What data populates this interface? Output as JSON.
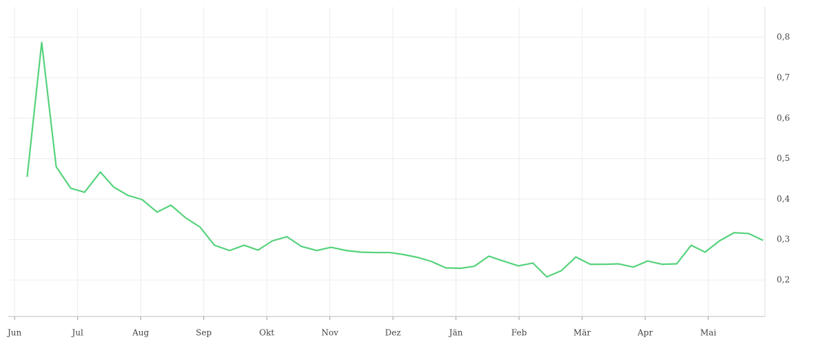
{
  "chart_data": {
    "type": "line",
    "x": [
      0.2,
      0.43,
      0.66,
      0.89,
      1.11,
      1.36,
      1.57,
      1.8,
      2.02,
      2.26,
      2.48,
      2.71,
      2.94,
      3.17,
      3.41,
      3.64,
      3.86,
      4.09,
      4.32,
      4.55,
      4.79,
      5.02,
      5.26,
      5.49,
      5.72,
      5.95,
      6.17,
      6.39,
      6.61,
      6.84,
      7.07,
      7.29,
      7.52,
      7.75,
      7.99,
      8.22,
      8.44,
      8.67,
      8.9,
      9.13,
      9.36,
      9.58,
      9.81,
      10.04,
      10.27,
      10.5,
      10.73,
      10.95,
      11.18,
      11.41,
      11.64,
      11.87
    ],
    "series": [
      {
        "color": "#55d27b",
        "values": [
          0.455,
          0.787,
          0.48,
          0.427,
          0.417,
          0.467,
          0.43,
          0.409,
          0.399,
          0.368,
          0.385,
          0.354,
          0.331,
          0.286,
          0.273,
          0.286,
          0.274,
          0.297,
          0.307,
          0.283,
          0.273,
          0.281,
          0.273,
          0.269,
          0.268,
          0.268,
          0.263,
          0.256,
          0.246,
          0.23,
          0.229,
          0.234,
          0.259,
          0.247,
          0.235,
          0.242,
          0.208,
          0.223,
          0.257,
          0.239,
          0.239,
          0.24,
          0.232,
          0.247,
          0.239,
          0.24,
          0.286,
          0.269,
          0.297,
          0.317,
          0.315,
          0.298
        ]
      }
    ],
    "xlim": [
      -0.1,
      11.9
    ],
    "xticks": [
      {
        "value": 0,
        "label": "Jun"
      },
      {
        "value": 1,
        "label": "Jul"
      },
      {
        "value": 2,
        "label": "Aug"
      },
      {
        "value": 3,
        "label": "Sep"
      },
      {
        "value": 4,
        "label": "Okt"
      },
      {
        "value": 5,
        "label": "Nov"
      },
      {
        "value": 6,
        "label": "Dez"
      },
      {
        "value": 7,
        "label": "Jän"
      },
      {
        "value": 8,
        "label": "Feb"
      },
      {
        "value": 9,
        "label": "Mär"
      },
      {
        "value": 10,
        "label": "Apr"
      },
      {
        "value": 11,
        "label": "Mai"
      }
    ],
    "ylim": [
      0.11,
      0.875
    ],
    "yticks": [
      {
        "value": 0.2,
        "label": "0,2"
      },
      {
        "value": 0.3,
        "label": "0,3"
      },
      {
        "value": 0.4,
        "label": "0,4"
      },
      {
        "value": 0.5,
        "label": "0,5"
      },
      {
        "value": 0.6,
        "label": "0,6"
      },
      {
        "value": 0.7,
        "label": "0,7"
      },
      {
        "value": 0.8,
        "label": "0,8"
      }
    ],
    "grid": true
  }
}
